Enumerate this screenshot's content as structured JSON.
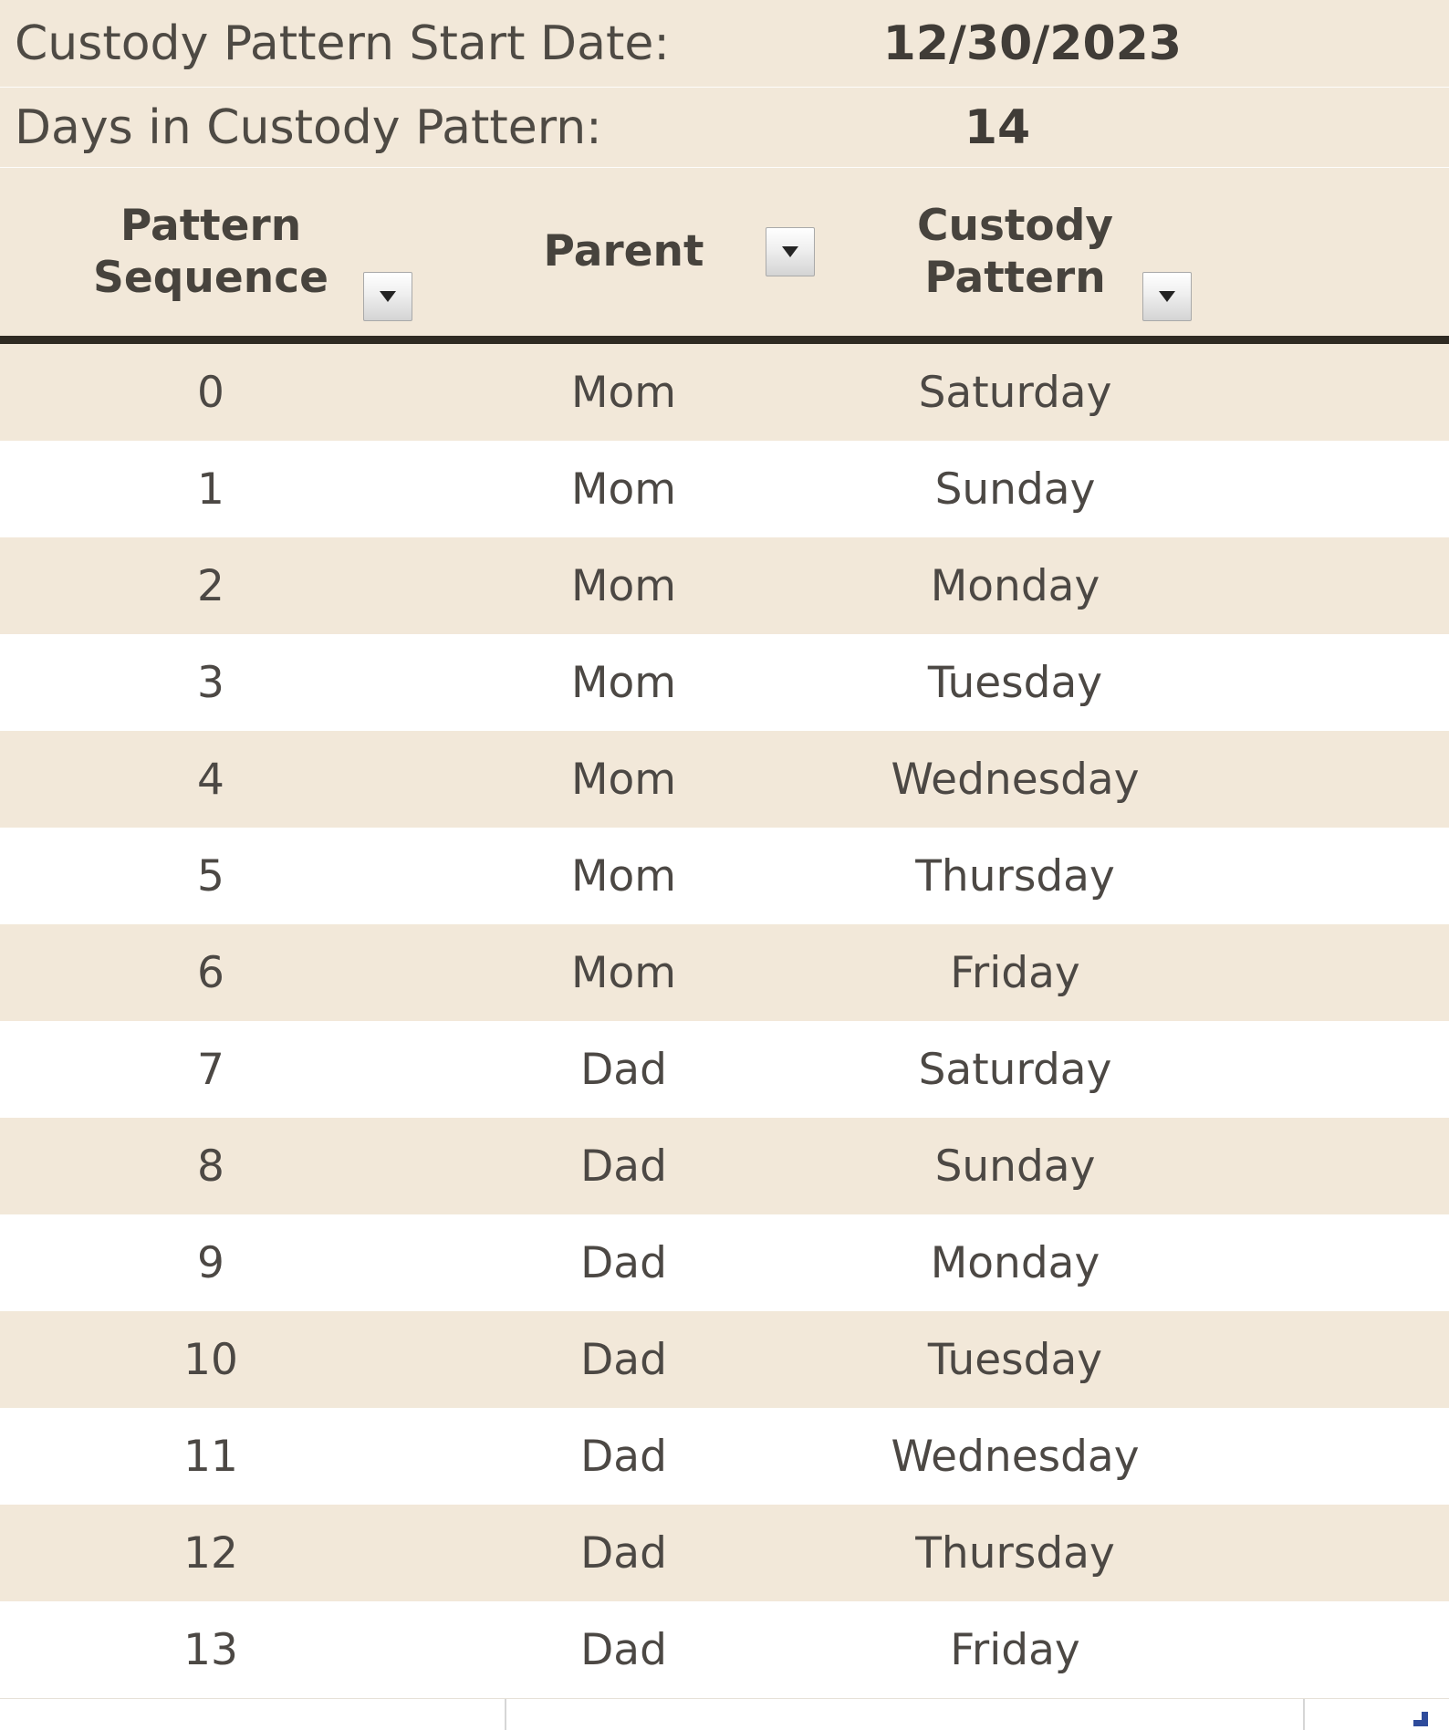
{
  "summary": {
    "start_date_label": "Custody Pattern Start Date:",
    "start_date_value": "12/30/2023",
    "days_label": "Days in Custody Pattern:",
    "days_value": "14"
  },
  "table": {
    "columns": [
      {
        "label_line1": "Pattern",
        "label_line2": "Sequence"
      },
      {
        "label_line1": "Parent",
        "label_line2": ""
      },
      {
        "label_line1": "Custody",
        "label_line2": "Pattern"
      }
    ],
    "rows": [
      {
        "seq": "0",
        "parent": "Mom",
        "day": "Saturday"
      },
      {
        "seq": "1",
        "parent": "Mom",
        "day": "Sunday"
      },
      {
        "seq": "2",
        "parent": "Mom",
        "day": "Monday"
      },
      {
        "seq": "3",
        "parent": "Mom",
        "day": "Tuesday"
      },
      {
        "seq": "4",
        "parent": "Mom",
        "day": "Wednesday"
      },
      {
        "seq": "5",
        "parent": "Mom",
        "day": "Thursday"
      },
      {
        "seq": "6",
        "parent": "Mom",
        "day": "Friday"
      },
      {
        "seq": "7",
        "parent": "Dad",
        "day": "Saturday"
      },
      {
        "seq": "8",
        "parent": "Dad",
        "day": "Sunday"
      },
      {
        "seq": "9",
        "parent": "Dad",
        "day": "Monday"
      },
      {
        "seq": "10",
        "parent": "Dad",
        "day": "Tuesday"
      },
      {
        "seq": "11",
        "parent": "Dad",
        "day": "Wednesday"
      },
      {
        "seq": "12",
        "parent": "Dad",
        "day": "Thursday"
      },
      {
        "seq": "13",
        "parent": "Dad",
        "day": "Friday"
      }
    ]
  },
  "colors": {
    "band_beige": "#F2E8D9",
    "band_white": "#FFFFFF",
    "header_rule": "#2F2A22",
    "text": "#4C4844",
    "table_handle_blue": "#2E4B9B"
  }
}
